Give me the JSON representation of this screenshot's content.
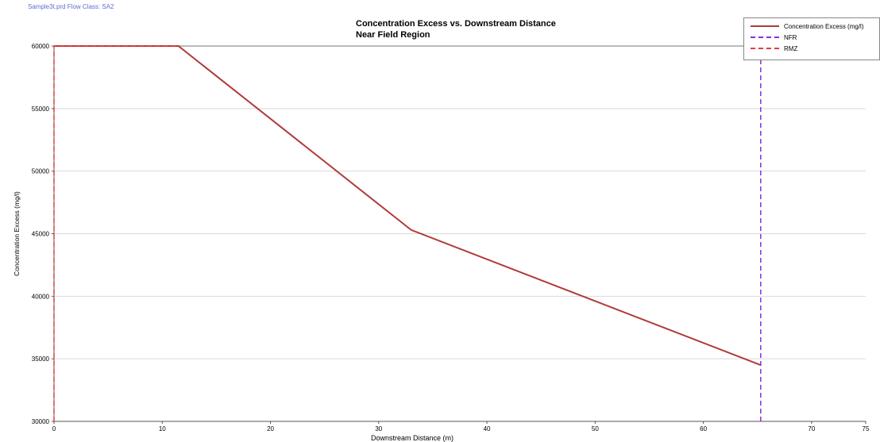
{
  "header": {
    "file_label": "Sample3t.prd   Flow Class: SA2"
  },
  "chart_data": {
    "type": "line",
    "title": "Concentration Excess vs. Downstream Distance",
    "subtitle": "Near Field Region",
    "xlabel": "Downstream Distance (m)",
    "ylabel": "Concentration Excess (mg/l)",
    "xlim": [
      0,
      75
    ],
    "ylim": [
      30000,
      60000
    ],
    "x_ticks": [
      "0",
      "10",
      "20",
      "30",
      "40",
      "50",
      "60",
      "70",
      "75"
    ],
    "y_ticks": [
      "30000",
      "35000",
      "40000",
      "45000",
      "50000",
      "55000",
      "60000"
    ],
    "grid": true,
    "legend_position": "top-right",
    "series": [
      {
        "name": "Concentration Excess (mg/l)",
        "color": "#b03a3a",
        "style": "solid",
        "x": [
          0,
          11.5,
          33,
          65.3
        ],
        "y": [
          60000,
          60000,
          45300,
          34500
        ]
      },
      {
        "name": "NFR",
        "color": "#8b2be2",
        "style": "dashed",
        "x": [
          65.3,
          65.3
        ],
        "y": [
          30000,
          60000
        ]
      },
      {
        "name": "RMZ",
        "color": "#e83a3a",
        "style": "dashed",
        "x": [
          0,
          0,
          11.5
        ],
        "y": [
          30000,
          60000,
          60000
        ]
      }
    ]
  }
}
